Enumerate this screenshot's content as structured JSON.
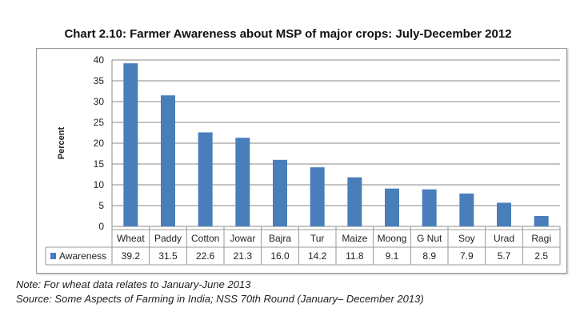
{
  "chart_data": {
    "type": "bar",
    "title": "Chart 2.10: Farmer Awareness about MSP of major crops: July-December 2012",
    "ylabel": "Percent",
    "xlabel": "",
    "ylim": [
      0,
      40
    ],
    "yticks": [
      0,
      5,
      10,
      15,
      20,
      25,
      30,
      35,
      40
    ],
    "grid": true,
    "legend": "data-table",
    "categories": [
      "Wheat",
      "Paddy",
      "Cotton",
      "Jowar",
      "Bajra",
      "Tur",
      "Maize",
      "Moong",
      "G Nut",
      "Soy",
      "Urad",
      "Ragi"
    ],
    "series": [
      {
        "name": "Awareness",
        "values": [
          39.2,
          31.5,
          22.6,
          21.3,
          16.0,
          14.2,
          11.8,
          9.1,
          8.9,
          7.9,
          5.7,
          2.5
        ],
        "labels": [
          "39.2",
          "31.5",
          "22.6",
          "21.3",
          "16.0",
          "14.2",
          "11.8",
          "9.1",
          "8.9",
          "7.9",
          "5.7",
          "2.5"
        ],
        "color": "#4a7ebb"
      }
    ]
  },
  "notes": {
    "note": "Note: For wheat data relates to January-June 2013",
    "source": "Source: Some Aspects of Farming in India; NSS 70th Round (January– December 2013)"
  }
}
